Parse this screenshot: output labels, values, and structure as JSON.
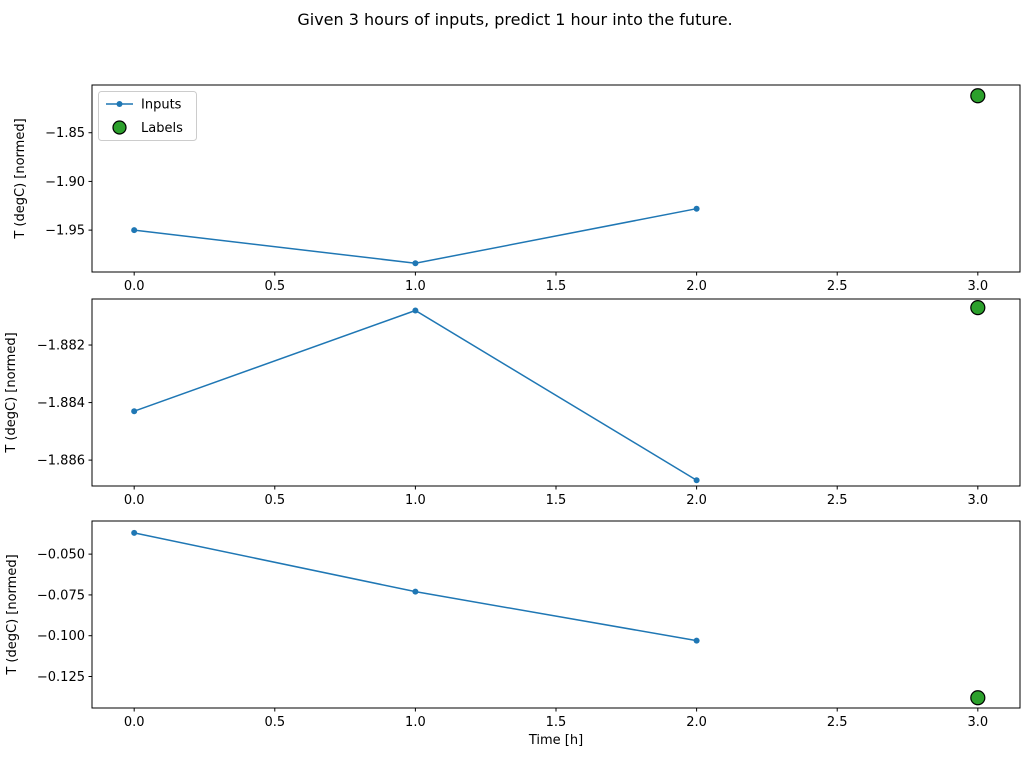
{
  "figure": {
    "title": "Given 3 hours of inputs, predict 1 hour into the future.",
    "xlabel": "Time [h]",
    "background": "#ffffff"
  },
  "colors": {
    "inputs_line": "#1f77b4",
    "labels_fill": "#2ca02c",
    "labels_edge": "#000000",
    "legend_border": "#cccccc",
    "axes": "#000000"
  },
  "legend": {
    "position": "upper-left-of-subplot-1",
    "entries": [
      {
        "label": "Inputs",
        "marker": "line-dot"
      },
      {
        "label": "Labels",
        "marker": "circle"
      }
    ]
  },
  "chart_data": [
    {
      "type": "line",
      "ylabel": "T (degC) [normed]",
      "series": [
        {
          "name": "Inputs",
          "style": "line+marker",
          "x": [
            0.0,
            1.0,
            2.0
          ],
          "y": [
            -1.95,
            -1.984,
            -1.928
          ]
        },
        {
          "name": "Labels",
          "style": "scatter",
          "x": [
            3.0
          ],
          "y": [
            -1.812
          ]
        }
      ],
      "xlim": [
        -0.15,
        3.15
      ],
      "ylim": [
        -1.993,
        -1.801
      ],
      "xticks": [
        0.0,
        0.5,
        1.0,
        1.5,
        2.0,
        2.5,
        3.0
      ],
      "yticks": [
        -1.85,
        -1.9,
        -1.95
      ],
      "ytick_decimals": 2,
      "grid": false
    },
    {
      "type": "line",
      "ylabel": "T (degC) [normed]",
      "series": [
        {
          "name": "Inputs",
          "style": "line+marker",
          "x": [
            0.0,
            1.0,
            2.0
          ],
          "y": [
            -1.8843,
            -1.8808,
            -1.8867
          ]
        },
        {
          "name": "Labels",
          "style": "scatter",
          "x": [
            3.0
          ],
          "y": [
            -1.8807
          ]
        }
      ],
      "xlim": [
        -0.15,
        3.15
      ],
      "ylim": [
        -1.8869,
        -1.8804
      ],
      "xticks": [
        0.0,
        0.5,
        1.0,
        1.5,
        2.0,
        2.5,
        3.0
      ],
      "yticks": [
        -1.882,
        -1.884,
        -1.886
      ],
      "ytick_decimals": 3,
      "grid": false
    },
    {
      "type": "line",
      "ylabel": "T (degC) [normed]",
      "series": [
        {
          "name": "Inputs",
          "style": "line+marker",
          "x": [
            0.0,
            1.0,
            2.0
          ],
          "y": [
            -0.037,
            -0.073,
            -0.103
          ]
        },
        {
          "name": "Labels",
          "style": "scatter",
          "x": [
            3.0
          ],
          "y": [
            -0.138
          ]
        }
      ],
      "xlim": [
        -0.15,
        3.15
      ],
      "ylim": [
        -0.1443,
        -0.0297
      ],
      "xticks": [
        0.0,
        0.5,
        1.0,
        1.5,
        2.0,
        2.5,
        3.0
      ],
      "yticks": [
        -0.05,
        -0.075,
        -0.1,
        -0.125
      ],
      "ytick_decimals": 3,
      "grid": false
    }
  ]
}
